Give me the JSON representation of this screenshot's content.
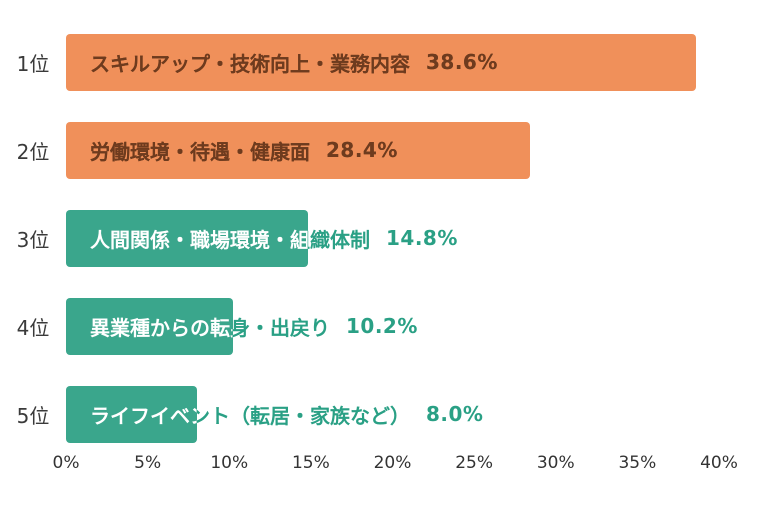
{
  "chart_data": {
    "type": "bar",
    "orientation": "horizontal",
    "title": "",
    "xlabel": "",
    "ylabel": "",
    "xlim": [
      0,
      40
    ],
    "grid": false,
    "legend": false,
    "categories": [
      "1位",
      "2位",
      "3位",
      "4位",
      "5位"
    ],
    "labels": [
      "スキルアップ・技術向上・業務内容",
      "労働環境・待遇・健康面",
      "人間関係・職場環境・組織体制",
      "異業種からの転身・出戻り",
      "ライフイベント（転居・家族など）"
    ],
    "values": [
      38.6,
      28.4,
      14.8,
      10.2,
      8.0
    ],
    "value_labels": [
      "38.6%",
      "28.4%",
      "14.8%",
      "10.2%",
      "8.0%"
    ],
    "bar_colors": [
      "#f0905a",
      "#f0905a",
      "#3aa68c",
      "#3aa68c",
      "#3aa68c"
    ],
    "text_inside_colors": [
      "#6e3b1e",
      "#6e3b1e",
      "#ffffff",
      "#ffffff",
      "#ffffff"
    ],
    "text_outside_colors": [
      "#6e3b1e",
      "#6e3b1e",
      "#2aa085",
      "#2aa085",
      "#2aa085"
    ],
    "x_ticks": [
      "0%",
      "5%",
      "10%",
      "15%",
      "20%",
      "25%",
      "30%",
      "35%",
      "40%"
    ],
    "x_tick_values": [
      0,
      5,
      10,
      15,
      20,
      25,
      30,
      35,
      40
    ]
  },
  "colors": {
    "background": "#ffffff",
    "axis_text": "#333333",
    "rank_text": "#3a3a3a"
  }
}
